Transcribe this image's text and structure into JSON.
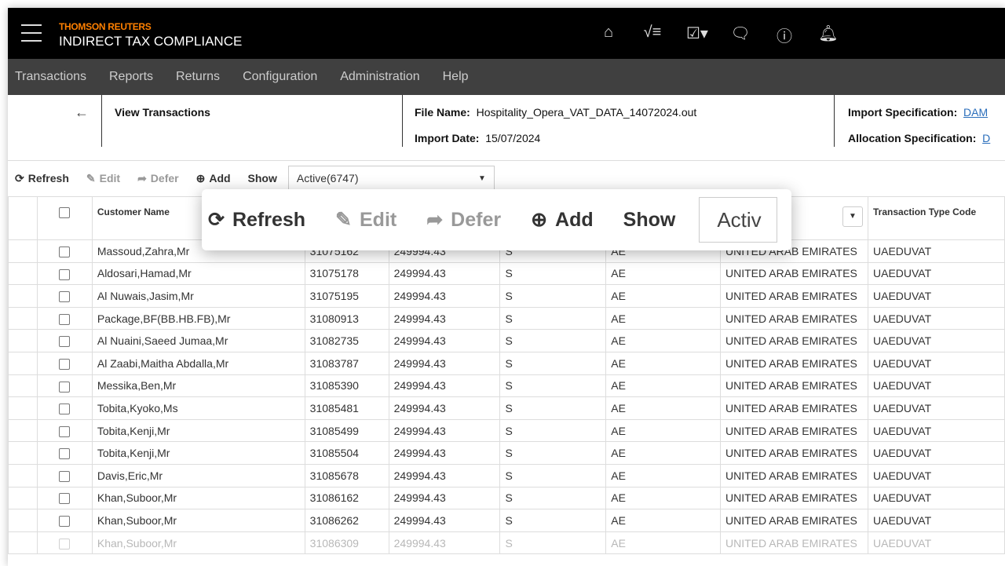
{
  "header": {
    "brand_top": "THOMSON REUTERS",
    "brand_bottom": "INDIRECT TAX COMPLIANCE",
    "icons": [
      "home-icon",
      "task-list-icon",
      "clipboard-check-icon",
      "chat-icon",
      "help-icon",
      "bell-icon"
    ]
  },
  "menu": [
    "Transactions",
    "Reports",
    "Returns",
    "Configuration",
    "Administration",
    "Help"
  ],
  "info": {
    "page_title": "View Transactions",
    "file_name_label": "File Name:",
    "file_name": "Hospitality_Opera_VAT_DATA_14072024.out",
    "import_date_label": "Import Date:",
    "import_date": "15/07/2024",
    "import_spec_label": "Import Specification:",
    "import_spec": "DAM",
    "alloc_spec_label": "Allocation Specification:",
    "alloc_spec": "D"
  },
  "toolbar": {
    "refresh": "Refresh",
    "edit": "Edit",
    "defer": "Defer",
    "add": "Add",
    "show": "Show",
    "show_value": "Active(6747)",
    "zoom_show_value": "Activ"
  },
  "table": {
    "headers": {
      "customer_name": "Customer Name",
      "transaction_type_code": "Transaction Type Code"
    },
    "rows": [
      [
        "Massoud,Zahra,Mr",
        "31075162",
        "249994.43",
        "S",
        "AE",
        "UNITED ARAB EMIRATES",
        "UAEDUVAT"
      ],
      [
        "Aldosari,Hamad,Mr",
        "31075178",
        "249994.43",
        "S",
        "AE",
        "UNITED ARAB EMIRATES",
        "UAEDUVAT"
      ],
      [
        "Al Nuwais,Jasim,Mr",
        "31075195",
        "249994.43",
        "S",
        "AE",
        "UNITED ARAB EMIRATES",
        "UAEDUVAT"
      ],
      [
        "Package,BF(BB.HB.FB),Mr",
        "31080913",
        "249994.43",
        "S",
        "AE",
        "UNITED ARAB EMIRATES",
        "UAEDUVAT"
      ],
      [
        "Al Nuaini,Saeed Jumaa,Mr",
        "31082735",
        "249994.43",
        "S",
        "AE",
        "UNITED ARAB EMIRATES",
        "UAEDUVAT"
      ],
      [
        "Al Zaabi,Maitha Abdalla,Mr",
        "31083787",
        "249994.43",
        "S",
        "AE",
        "UNITED ARAB EMIRATES",
        "UAEDUVAT"
      ],
      [
        "Messika,Ben,Mr",
        "31085390",
        "249994.43",
        "S",
        "AE",
        "UNITED ARAB EMIRATES",
        "UAEDUVAT"
      ],
      [
        "Tobita,Kyoko,Ms",
        "31085481",
        "249994.43",
        "S",
        "AE",
        "UNITED ARAB EMIRATES",
        "UAEDUVAT"
      ],
      [
        "Tobita,Kenji,Mr",
        "31085499",
        "249994.43",
        "S",
        "AE",
        "UNITED ARAB EMIRATES",
        "UAEDUVAT"
      ],
      [
        "Tobita,Kenji,Mr",
        "31085504",
        "249994.43",
        "S",
        "AE",
        "UNITED ARAB EMIRATES",
        "UAEDUVAT"
      ],
      [
        "Davis,Eric,Mr",
        "31085678",
        "249994.43",
        "S",
        "AE",
        "UNITED ARAB EMIRATES",
        "UAEDUVAT"
      ],
      [
        "Khan,Suboor,Mr",
        "31086162",
        "249994.43",
        "S",
        "AE",
        "UNITED ARAB EMIRATES",
        "UAEDUVAT"
      ],
      [
        "Khan,Suboor,Mr",
        "31086262",
        "249994.43",
        "S",
        "AE",
        "UNITED ARAB EMIRATES",
        "UAEDUVAT"
      ],
      [
        "Khan,Suboor,Mr",
        "31086309",
        "249994.43",
        "S",
        "AE",
        "UNITED ARAB EMIRATES",
        "UAEDUVAT"
      ]
    ]
  },
  "colors": {
    "brand": "#ff8000",
    "topbar": "#000000",
    "menubar": "#404040",
    "link": "#2a6ebb"
  }
}
